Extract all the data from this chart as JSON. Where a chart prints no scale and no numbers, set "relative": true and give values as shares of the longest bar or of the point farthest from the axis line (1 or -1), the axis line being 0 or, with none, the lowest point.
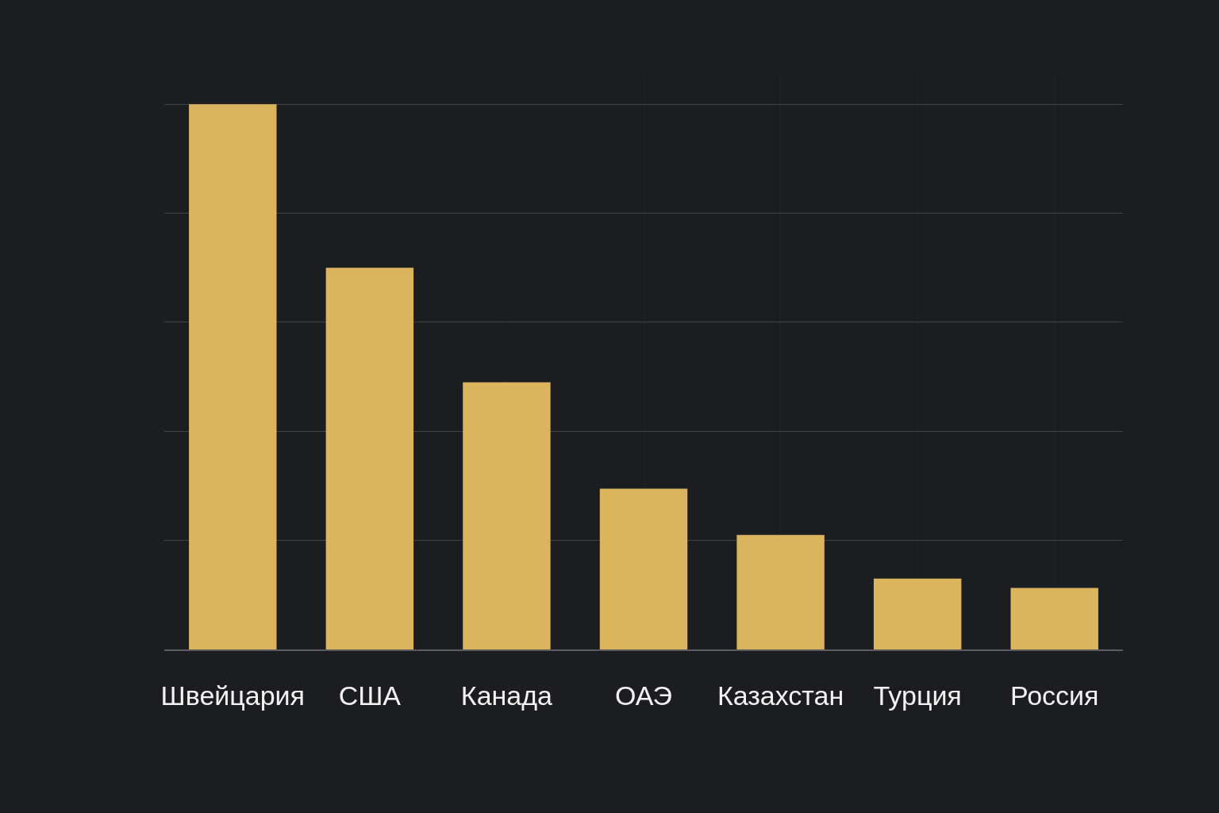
{
  "chart_data": {
    "type": "bar",
    "relative": true,
    "categories": [
      "Швейцария",
      "США",
      "Канада",
      "ОАЭ",
      "Казахстан",
      "Турция",
      "Россия"
    ],
    "values": [
      1,
      0.7,
      0.49,
      0.295,
      0.21,
      0.13,
      0.113
    ],
    "color": "#dbb45e",
    "grid": true
  }
}
